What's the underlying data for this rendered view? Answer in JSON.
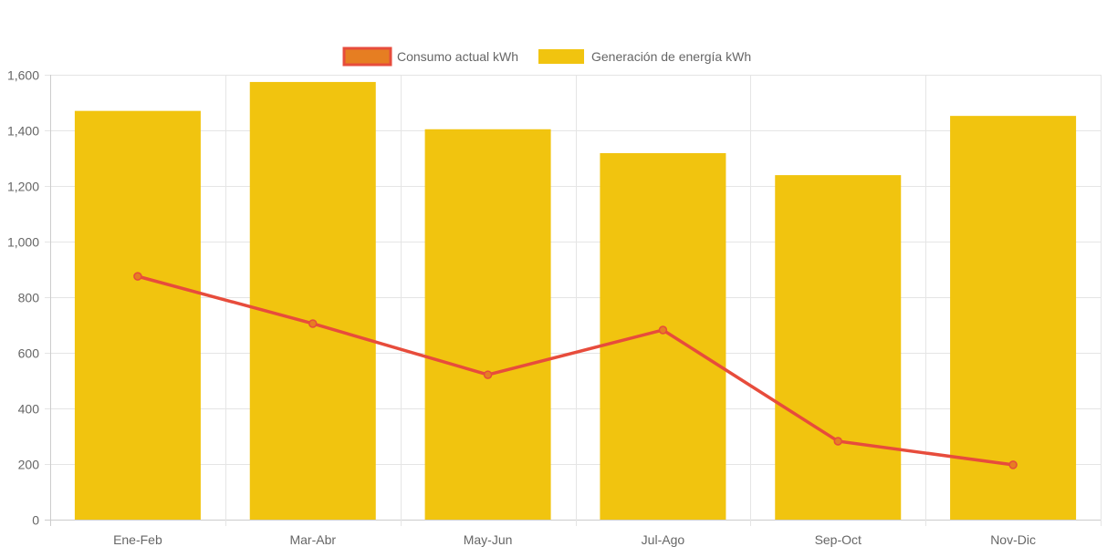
{
  "chart_data": {
    "type": "bar",
    "categories": [
      "Ene-Feb",
      "Mar-Abr",
      "May-Jun",
      "Jul-Ago",
      "Sep-Oct",
      "Nov-Dic"
    ],
    "series": [
      {
        "name": "Consumo actual kWh",
        "type": "line",
        "color": "#e74c3c",
        "fill": "#e67e22",
        "values": [
          875,
          705,
          521,
          682,
          282,
          197
        ]
      },
      {
        "name": "Generación de energía kWh",
        "type": "bar",
        "color": "#f1c40f",
        "values": [
          1470,
          1574,
          1404,
          1318,
          1239,
          1452
        ]
      }
    ],
    "yticks": [
      "0",
      "200",
      "400",
      "600",
      "800",
      "1,000",
      "1,200",
      "1,400",
      "1,600"
    ],
    "ylim": [
      0,
      1600
    ],
    "grid": true,
    "legend": "top"
  }
}
